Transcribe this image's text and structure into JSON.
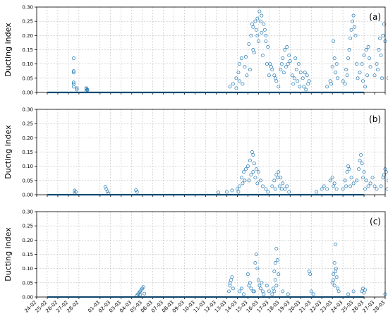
{
  "chart_data": [
    {
      "type": "scatter",
      "panel_label": "(a)",
      "ylabel": "Ducting index",
      "xlim": [
        "24-02",
        "28-03"
      ],
      "ylim": [
        0,
        0.3
      ],
      "yticks": [
        "0.00",
        "0.05",
        "0.10",
        "0.15",
        "0.20",
        "0.25",
        "0.30"
      ],
      "grid": true,
      "marker": "open-circle",
      "color": "#1f77b4",
      "baseline": {
        "from": "24-02",
        "to": "26-03",
        "value": 0
      },
      "points": [
        [
          27.5,
          0.12
        ],
        [
          27.5,
          0.075
        ],
        [
          27.5,
          0.07
        ],
        [
          27.5,
          0.035
        ],
        [
          27.5,
          0.03
        ],
        [
          27.5,
          0.02
        ],
        [
          27.8,
          0.015
        ],
        [
          27.8,
          0.01
        ],
        [
          28.7,
          0.015
        ],
        [
          28.7,
          0.012
        ],
        [
          28.8,
          0.01
        ],
        [
          28.8,
          0.008
        ],
        [
          28.7,
          0.006
        ],
        [
          42.3,
          0.02
        ],
        [
          42.6,
          0.03
        ],
        [
          42.9,
          0.05
        ],
        [
          43.2,
          0.1
        ],
        [
          43.4,
          0.12
        ],
        [
          43.7,
          0.09
        ],
        [
          43.9,
          0.06
        ],
        [
          43.5,
          0.03
        ],
        [
          43.2,
          0.04
        ],
        [
          42.9,
          0.015
        ],
        [
          43.8,
          0.125
        ],
        [
          43.1,
          0.07
        ],
        [
          44.1,
          0.17
        ],
        [
          44.3,
          0.2
        ],
        [
          44.5,
          0.23
        ],
        [
          44.7,
          0.25
        ],
        [
          44.9,
          0.26
        ],
        [
          45.1,
          0.285
        ],
        [
          45.3,
          0.27
        ],
        [
          45.5,
          0.24
        ],
        [
          45.7,
          0.2
        ],
        [
          45.9,
          0.16
        ],
        [
          44.4,
          0.24
        ],
        [
          44.8,
          0.22
        ],
        [
          45.2,
          0.25
        ],
        [
          45.6,
          0.22
        ],
        [
          45.0,
          0.18
        ],
        [
          44.6,
          0.14
        ],
        [
          45.4,
          0.13
        ],
        [
          45.8,
          0.1
        ],
        [
          44.2,
          0.08
        ],
        [
          46.0,
          0.06
        ],
        [
          45.3,
          0.21
        ],
        [
          44.9,
          0.2
        ],
        [
          45.7,
          0.18
        ],
        [
          44.5,
          0.15
        ],
        [
          46.1,
          0.1
        ],
        [
          46.3,
          0.08
        ],
        [
          46.5,
          0.06
        ],
        [
          46.7,
          0.04
        ],
        [
          46.9,
          0.02
        ],
        [
          46.2,
          0.09
        ],
        [
          46.6,
          0.05
        ],
        [
          47.1,
          0.08
        ],
        [
          47.3,
          0.12
        ],
        [
          47.5,
          0.15
        ],
        [
          47.7,
          0.16
        ],
        [
          47.9,
          0.13
        ],
        [
          47.2,
          0.1
        ],
        [
          47.6,
          0.09
        ],
        [
          47.8,
          0.1
        ],
        [
          47.4,
          0.07
        ],
        [
          48.0,
          0.11
        ],
        [
          48.2,
          0.06
        ],
        [
          48.4,
          0.05
        ],
        [
          48.6,
          0.08
        ],
        [
          48.8,
          0.1
        ],
        [
          49.0,
          0.07
        ],
        [
          48.3,
          0.03
        ],
        [
          48.7,
          0.04
        ],
        [
          48.9,
          0.02
        ],
        [
          48.5,
          0.12
        ],
        [
          49.2,
          0.05
        ],
        [
          49.4,
          0.07
        ],
        [
          49.6,
          0.06
        ],
        [
          49.8,
          0.04
        ],
        [
          49.3,
          0.02
        ],
        [
          49.7,
          0.03
        ],
        [
          49.5,
          0.01
        ],
        [
          51.5,
          0.02
        ],
        [
          51.8,
          0.04
        ],
        [
          52.0,
          0.09
        ],
        [
          52.2,
          0.12
        ],
        [
          52.1,
          0.18
        ],
        [
          52.3,
          0.07
        ],
        [
          52.5,
          0.05
        ],
        [
          51.9,
          0.03
        ],
        [
          52.4,
          0.1
        ],
        [
          53.0,
          0.04
        ],
        [
          53.3,
          0.08
        ],
        [
          53.5,
          0.12
        ],
        [
          53.7,
          0.19
        ],
        [
          53.8,
          0.22
        ],
        [
          53.9,
          0.25
        ],
        [
          54.0,
          0.27
        ],
        [
          54.1,
          0.23
        ],
        [
          54.2,
          0.2
        ],
        [
          53.6,
          0.15
        ],
        [
          54.3,
          0.1
        ],
        [
          54.4,
          0.05
        ],
        [
          53.4,
          0.06
        ],
        [
          53.2,
          0.03
        ],
        [
          54.6,
          0.07
        ],
        [
          54.8,
          0.1
        ],
        [
          55.0,
          0.13
        ],
        [
          55.2,
          0.15
        ],
        [
          55.4,
          0.16
        ],
        [
          55.5,
          0.12
        ],
        [
          55.6,
          0.09
        ],
        [
          55.3,
          0.06
        ],
        [
          54.9,
          0.04
        ],
        [
          55.1,
          0.02
        ],
        [
          56.0,
          0.06
        ],
        [
          56.2,
          0.1
        ],
        [
          56.4,
          0.15
        ],
        [
          56.6,
          0.13
        ],
        [
          56.8,
          0.2
        ],
        [
          56.9,
          0.24
        ],
        [
          57.0,
          0.18
        ],
        [
          56.5,
          0.19
        ],
        [
          56.3,
          0.08
        ],
        [
          56.7,
          0.05
        ],
        [
          57.3,
          0.05
        ],
        [
          57.5,
          0.12
        ],
        [
          57.7,
          0.19
        ],
        [
          57.9,
          0.16
        ],
        [
          58.1,
          0.08
        ],
        [
          58.3,
          0.04
        ],
        [
          58.5,
          0.02
        ],
        [
          57.6,
          0.1
        ],
        [
          58.0,
          0.07
        ],
        [
          58.6,
          0.01
        ],
        [
          58.7,
          0.03
        ],
        [
          58.9,
          0.02
        ],
        [
          59.1,
          0.01
        ]
      ]
    },
    {
      "type": "scatter",
      "panel_label": "(b)",
      "ylabel": "Ducting index",
      "xlim": [
        "24-02",
        "28-03"
      ],
      "ylim": [
        0,
        0.3
      ],
      "yticks": [
        "0.00",
        "0.05",
        "0.10",
        "0.15",
        "0.20",
        "0.25",
        "0.30"
      ],
      "grid": true,
      "marker": "open-circle",
      "color": "#1f77b4",
      "baseline": {
        "from": "24-02",
        "to": "26-03",
        "value": 0
      },
      "points": [
        [
          27.6,
          0.015
        ],
        [
          27.7,
          0.01
        ],
        [
          27.6,
          0.005
        ],
        [
          30.5,
          0.028
        ],
        [
          30.6,
          0.02
        ],
        [
          30.7,
          0.012
        ],
        [
          30.8,
          0.005
        ],
        [
          33.4,
          0.016
        ],
        [
          33.5,
          0.01
        ],
        [
          41.2,
          0.008
        ],
        [
          42.0,
          0.01
        ],
        [
          42.5,
          0.015
        ],
        [
          43.0,
          0.02
        ],
        [
          43.2,
          0.03
        ],
        [
          43.4,
          0.06
        ],
        [
          43.6,
          0.08
        ],
        [
          43.8,
          0.09
        ],
        [
          43.5,
          0.04
        ],
        [
          43.1,
          0.01
        ],
        [
          43.7,
          0.05
        ],
        [
          44.0,
          0.1
        ],
        [
          44.2,
          0.12
        ],
        [
          44.4,
          0.15
        ],
        [
          44.5,
          0.14
        ],
        [
          44.6,
          0.11
        ],
        [
          44.8,
          0.09
        ],
        [
          45.0,
          0.08
        ],
        [
          44.3,
          0.07
        ],
        [
          44.7,
          0.06
        ],
        [
          44.9,
          0.04
        ],
        [
          45.2,
          0.05
        ],
        [
          45.4,
          0.03
        ],
        [
          44.1,
          0.05
        ],
        [
          44.5,
          0.08
        ],
        [
          45.7,
          0.02
        ],
        [
          45.9,
          0.01
        ],
        [
          46.3,
          0.03
        ],
        [
          46.5,
          0.05
        ],
        [
          46.7,
          0.07
        ],
        [
          46.9,
          0.08
        ],
        [
          47.1,
          0.06
        ],
        [
          47.3,
          0.04
        ],
        [
          46.6,
          0.02
        ],
        [
          47.0,
          0.03
        ],
        [
          47.2,
          0.02
        ],
        [
          46.8,
          0.06
        ],
        [
          47.5,
          0.02
        ],
        [
          47.7,
          0.03
        ],
        [
          47.9,
          0.01
        ],
        [
          50.5,
          0.01
        ],
        [
          51.0,
          0.02
        ],
        [
          51.2,
          0.03
        ],
        [
          51.5,
          0.02
        ],
        [
          51.8,
          0.05
        ],
        [
          52.0,
          0.06
        ],
        [
          52.2,
          0.04
        ],
        [
          52.4,
          0.02
        ],
        [
          52.1,
          0.03
        ],
        [
          53.0,
          0.02
        ],
        [
          53.2,
          0.05
        ],
        [
          53.4,
          0.08
        ],
        [
          53.5,
          0.1
        ],
        [
          53.6,
          0.09
        ],
        [
          53.8,
          0.06
        ],
        [
          54.0,
          0.04
        ],
        [
          53.7,
          0.03
        ],
        [
          53.3,
          0.03
        ],
        [
          54.3,
          0.05
        ],
        [
          54.5,
          0.09
        ],
        [
          54.6,
          0.12
        ],
        [
          54.7,
          0.14
        ],
        [
          54.8,
          0.11
        ],
        [
          55.0,
          0.08
        ],
        [
          55.2,
          0.05
        ],
        [
          55.4,
          0.03
        ],
        [
          54.9,
          0.06
        ],
        [
          55.1,
          0.02
        ],
        [
          55.6,
          0.04
        ],
        [
          55.8,
          0.06
        ],
        [
          56.0,
          0.03
        ],
        [
          56.2,
          0.02
        ],
        [
          56.6,
          0.03
        ],
        [
          56.8,
          0.06
        ],
        [
          57.0,
          0.09
        ],
        [
          57.1,
          0.08
        ],
        [
          57.3,
          0.05
        ],
        [
          57.5,
          0.03
        ],
        [
          57.2,
          0.02
        ],
        [
          56.9,
          0.07
        ],
        [
          58.3,
          0.01
        ],
        [
          58.5,
          0.02
        ],
        [
          58.7,
          0.01
        ]
      ]
    },
    {
      "type": "scatter",
      "panel_label": "(c)",
      "ylabel": "Ducting index",
      "xlim": [
        "24-02",
        "28-03"
      ],
      "ylim": [
        0,
        0.3
      ],
      "yticks": [
        "0.00",
        "0.05",
        "0.10",
        "0.15",
        "0.20",
        "0.25",
        "0.30"
      ],
      "xticks": [
        "24-02",
        "25-02",
        "26-02",
        "27-02",
        "28-02",
        "01-03",
        "02-03",
        "03-03",
        "04-03",
        "05-03",
        "06-03",
        "07-03",
        "08-03",
        "09-03",
        "10-03",
        "11-03",
        "12-03",
        "13-03",
        "14-03",
        "15-03",
        "16-03",
        "17-03",
        "18-03",
        "19-03",
        "20-03",
        "21-03",
        "22-03",
        "23-03",
        "24-03",
        "25-03",
        "26-03",
        "27-03",
        "28-03"
      ],
      "grid": true,
      "marker": "open-circle",
      "color": "#1f77b4",
      "baseline": {
        "from": "24-02",
        "to": "26-03",
        "value": 0
      },
      "points": [
        [
          33.5,
          0.005
        ],
        [
          33.6,
          0.01
        ],
        [
          33.7,
          0.015
        ],
        [
          33.8,
          0.02
        ],
        [
          33.9,
          0.025
        ],
        [
          34.0,
          0.03
        ],
        [
          34.1,
          0.035
        ],
        [
          33.8,
          0.008
        ],
        [
          34.2,
          0.012
        ],
        [
          42.2,
          0.02
        ],
        [
          42.3,
          0.04
        ],
        [
          42.4,
          0.06
        ],
        [
          42.5,
          0.07
        ],
        [
          42.3,
          0.05
        ],
        [
          42.6,
          0.03
        ],
        [
          43.2,
          0.02
        ],
        [
          43.4,
          0.03
        ],
        [
          43.6,
          0.01
        ],
        [
          44.0,
          0.08
        ],
        [
          44.2,
          0.05
        ],
        [
          44.3,
          0.03
        ],
        [
          44.5,
          0.02
        ],
        [
          44.1,
          0.04
        ],
        [
          44.7,
          0.12
        ],
        [
          44.8,
          0.15
        ],
        [
          44.9,
          0.1
        ],
        [
          45.0,
          0.06
        ],
        [
          45.1,
          0.04
        ],
        [
          45.2,
          0.03
        ],
        [
          45.3,
          0.05
        ],
        [
          45.4,
          0.02
        ],
        [
          44.6,
          0.02
        ],
        [
          45.5,
          0.01
        ],
        [
          45.8,
          0.04
        ],
        [
          46.0,
          0.02
        ],
        [
          46.3,
          0.01
        ],
        [
          46.4,
          0.03
        ],
        [
          46.5,
          0.09
        ],
        [
          46.6,
          0.12
        ],
        [
          46.7,
          0.17
        ],
        [
          46.8,
          0.13
        ],
        [
          46.9,
          0.08
        ],
        [
          46.6,
          0.06
        ],
        [
          46.7,
          0.04
        ],
        [
          46.5,
          0.02
        ],
        [
          47.3,
          0.02
        ],
        [
          47.8,
          0.01
        ],
        [
          49.8,
          0.09
        ],
        [
          49.9,
          0.08
        ],
        [
          50.0,
          0.02
        ],
        [
          50.2,
          0.01
        ],
        [
          52.0,
          0.05
        ],
        [
          52.1,
          0.08
        ],
        [
          52.2,
          0.12
        ],
        [
          52.3,
          0.185
        ],
        [
          52.35,
          0.1
        ],
        [
          52.4,
          0.07
        ],
        [
          52.2,
          0.04
        ],
        [
          52.5,
          0.03
        ],
        [
          52.6,
          0.02
        ],
        [
          52.1,
          0.06
        ],
        [
          52.3,
          0.09
        ],
        [
          53.5,
          0.01
        ],
        [
          54.0,
          0.02
        ],
        [
          54.8,
          0.02
        ],
        [
          54.9,
          0.03
        ],
        [
          55.0,
          0.015
        ],
        [
          55.1,
          0.025
        ],
        [
          57.0,
          0.01
        ],
        [
          57.5,
          0.005
        ]
      ]
    }
  ]
}
